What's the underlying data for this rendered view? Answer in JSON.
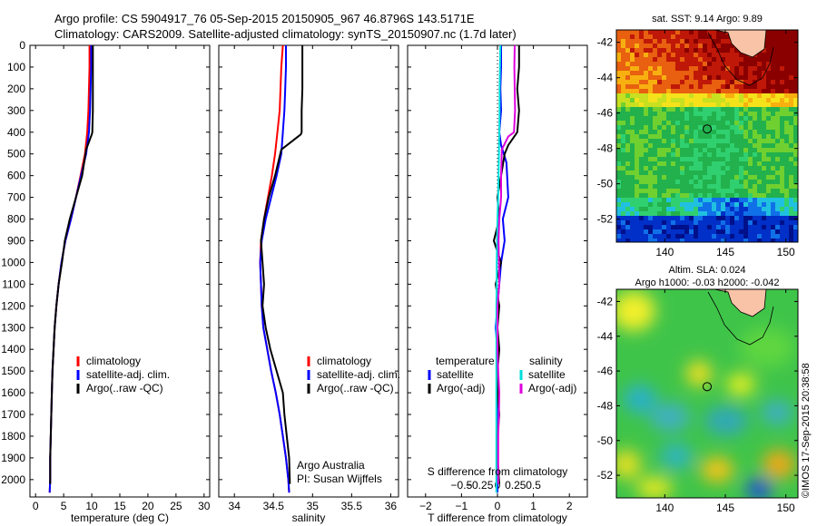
{
  "header": {
    "line1": "Argo profile: CS 5904917_76 05-Sep-2015 20150905_967 46.8796S 143.5171E",
    "line2": "Climatology: CARS2009. Satellite-adjusted climatology: synTS_20150907.nc (1.7d later)"
  },
  "chart_data": [
    {
      "id": "temperature",
      "type": "line",
      "xlabel": "temperature (deg C)",
      "xlim": [
        -1,
        31
      ],
      "xticks": [
        0,
        5,
        10,
        15,
        20,
        25,
        30
      ],
      "ylim": [
        0,
        2080
      ],
      "yticks": [
        0,
        100,
        200,
        300,
        400,
        500,
        600,
        700,
        800,
        900,
        1000,
        1100,
        1200,
        1300,
        1400,
        1500,
        1600,
        1700,
        1800,
        1900,
        2000
      ],
      "legend": [
        "climatology",
        "satellite-adj. clim.",
        "Argo(..raw -QC)"
      ],
      "series": [
        {
          "name": "climatology",
          "color": "#ff0000",
          "x": [
            9.6,
            9.6,
            9.5,
            9.4,
            9.2,
            8.8,
            8.0,
            7.2,
            6.3,
            5.3,
            4.6,
            4.1,
            3.7,
            3.4,
            3.2,
            3.0,
            2.9,
            2.8,
            2.7,
            2.6,
            2.6,
            2.5
          ],
          "y": [
            0,
            100,
            200,
            300,
            400,
            500,
            600,
            700,
            800,
            900,
            1000,
            1100,
            1200,
            1300,
            1400,
            1500,
            1600,
            1700,
            1800,
            1900,
            2000,
            2060
          ]
        },
        {
          "name": "satellite-adj. clim.",
          "color": "#0000ff",
          "x": [
            9.9,
            9.9,
            9.8,
            9.7,
            9.5,
            9.0,
            8.1,
            7.2,
            6.3,
            5.3,
            4.6,
            4.1,
            3.7,
            3.4,
            3.2,
            3.0,
            2.9,
            2.8,
            2.7,
            2.6,
            2.6,
            2.5
          ],
          "y": [
            0,
            100,
            200,
            300,
            400,
            500,
            600,
            700,
            800,
            900,
            1000,
            1100,
            1200,
            1300,
            1400,
            1500,
            1600,
            1700,
            1800,
            1900,
            2000,
            2060
          ]
        },
        {
          "name": "Argo(..raw -QC)",
          "color": "#000000",
          "x": [
            10.2,
            10.2,
            10.2,
            10.2,
            10.1,
            10.0,
            9.0,
            8.3,
            7.2,
            6.1,
            5.2,
            4.7,
            4.1,
            3.7,
            3.4,
            3.2,
            3.0,
            2.9,
            2.8,
            2.7,
            2.6,
            2.6
          ],
          "y": [
            0,
            100,
            200,
            300,
            400,
            410,
            480,
            600,
            700,
            800,
            900,
            1000,
            1100,
            1200,
            1300,
            1400,
            1500,
            1600,
            1700,
            1800,
            1900,
            2020
          ]
        }
      ]
    },
    {
      "id": "salinity",
      "type": "line",
      "xlabel": "salinity",
      "xlim": [
        33.8,
        36.1
      ],
      "xticks": [
        34,
        34.5,
        35,
        35.5,
        36
      ],
      "ylim": [
        0,
        2080
      ],
      "legend": [
        "climatology",
        "satellite-adj. clim.",
        "Argo(..raw -QC)"
      ],
      "annotation": [
        "Argo Australia",
        "PI: Susan Wijffels"
      ],
      "series": [
        {
          "name": "climatology",
          "color": "#ff0000",
          "x": [
            34.62,
            34.6,
            34.59,
            34.58,
            34.55,
            34.52,
            34.48,
            34.43,
            34.38,
            34.34,
            34.33,
            34.34,
            34.35,
            34.37,
            34.42,
            34.47,
            34.53,
            34.58,
            34.62,
            34.66,
            34.69,
            34.7
          ],
          "y": [
            0,
            100,
            200,
            300,
            400,
            500,
            600,
            700,
            800,
            900,
            1000,
            1100,
            1200,
            1300,
            1400,
            1500,
            1600,
            1700,
            1800,
            1900,
            2000,
            2060
          ]
        },
        {
          "name": "satellite-adj. clim.",
          "color": "#0000ff",
          "x": [
            34.66,
            34.66,
            34.65,
            34.64,
            34.62,
            34.6,
            34.54,
            34.47,
            34.4,
            34.35,
            34.33,
            34.34,
            34.35,
            34.37,
            34.42,
            34.47,
            34.53,
            34.58,
            34.62,
            34.66,
            34.69,
            34.7
          ],
          "y": [
            0,
            100,
            200,
            300,
            400,
            500,
            600,
            700,
            800,
            900,
            1000,
            1100,
            1200,
            1300,
            1400,
            1500,
            1600,
            1700,
            1800,
            1900,
            2000,
            2060
          ]
        },
        {
          "name": "Argo(..raw -QC)",
          "color": "#000000",
          "x": [
            34.87,
            34.87,
            34.87,
            34.86,
            34.86,
            34.85,
            34.6,
            34.52,
            34.44,
            34.38,
            34.34,
            34.36,
            34.38,
            34.36,
            34.4,
            34.46,
            34.54,
            34.62,
            34.64,
            34.67,
            34.7,
            34.71
          ],
          "y": [
            0,
            100,
            200,
            300,
            400,
            410,
            480,
            600,
            700,
            800,
            900,
            1000,
            1100,
            1200,
            1300,
            1400,
            1500,
            1600,
            1700,
            1800,
            1900,
            2020
          ]
        }
      ]
    },
    {
      "id": "difference",
      "type": "line",
      "xlabel": "T difference from climatology",
      "xlabel_top": "S difference from climatology",
      "xlim": [
        -2.5,
        2.5
      ],
      "xticks": [
        -2,
        -1,
        0,
        1,
        2
      ],
      "xticks_labels": [
        "−2",
        "−1",
        "0",
        "1",
        "2"
      ],
      "xticks_top": [
        -1,
        -0.5,
        0,
        0.5,
        1
      ],
      "xticks_top_labels": [
        "−0.5",
        "−0.25",
        "0",
        "0.25",
        "0.5"
      ],
      "ylim": [
        0,
        2080
      ],
      "legend_left_title": "temperature",
      "legend_right_title": "salinity",
      "legend_left": [
        "satellite",
        "Argo(-adj)"
      ],
      "legend_right": [
        "satellite",
        "Argo(-adj)"
      ],
      "series": [
        {
          "name": "T satellite",
          "color": "#0000ff",
          "x": [
            0.1,
            0.1,
            0.08,
            0.1,
            0.05,
            0.1,
            0.25,
            0.3,
            0.15,
            0.2,
            0.1,
            0.05,
            0.0,
            -0.05,
            0.0,
            0.0,
            0.0,
            0.0,
            0.0,
            0.0,
            0.0,
            0.0
          ],
          "y": [
            0,
            100,
            200,
            300,
            400,
            460,
            540,
            700,
            800,
            900,
            1000,
            1100,
            1200,
            1300,
            1400,
            1500,
            1600,
            1700,
            1800,
            1900,
            2000,
            2060
          ]
        },
        {
          "name": "T Argo(-adj)",
          "color": "#000000",
          "x": [
            0.6,
            0.6,
            0.55,
            0.6,
            0.55,
            0.3,
            0.2,
            0.1,
            0.0,
            0.05,
            -0.1,
            0.1,
            -0.05,
            0.05,
            0.0,
            0.05,
            0.0,
            0.0,
            0.05,
            0.0,
            0.0,
            0.05
          ],
          "y": [
            0,
            100,
            200,
            300,
            400,
            460,
            500,
            600,
            700,
            800,
            900,
            1000,
            1100,
            1200,
            1300,
            1400,
            1500,
            1600,
            1700,
            1800,
            1900,
            2020
          ]
        },
        {
          "name": "S satellite",
          "color": "#00dddd",
          "x": [
            0.08,
            0.07,
            0.06,
            0.06,
            0.05,
            0.04,
            0.03,
            0.02,
            0.0,
            -0.01,
            -0.02,
            -0.02,
            -0.03,
            -0.03,
            -0.03,
            -0.03,
            -0.03,
            -0.03,
            -0.03,
            -0.03,
            -0.03,
            -0.03
          ],
          "y": [
            0,
            100,
            200,
            300,
            400,
            500,
            600,
            700,
            800,
            900,
            1000,
            1100,
            1200,
            1300,
            1400,
            1500,
            1600,
            1700,
            1800,
            1900,
            2000,
            2060
          ]
        },
        {
          "name": "S Argo(-adj)",
          "color": "#dd00dd",
          "x": [
            0.48,
            0.47,
            0.48,
            0.49,
            0.46,
            0.3,
            0.12,
            0.1,
            0.1,
            0.05,
            0.03,
            0.04,
            0.05,
            0.0,
            0.0,
            0.0,
            0.02,
            0.05,
            0.04,
            0.02,
            0.02,
            0.02
          ],
          "y": [
            0,
            100,
            200,
            300,
            400,
            420,
            480,
            600,
            700,
            800,
            900,
            1000,
            1100,
            1200,
            1300,
            1400,
            1500,
            1600,
            1700,
            1800,
            1900,
            2020
          ]
        }
      ]
    },
    {
      "id": "sst_map",
      "type": "heatmap",
      "title": "sat. SST: 9.14  Argo: 9.89",
      "xlim": [
        136,
        151
      ],
      "ylim": [
        -53.3,
        -41.3
      ],
      "xticks": [
        140,
        145,
        150
      ],
      "yticks": [
        -42,
        -44,
        -46,
        -48,
        -50,
        -52
      ],
      "profile_location": [
        143.5,
        -46.9
      ]
    },
    {
      "id": "sla_map",
      "type": "heatmap",
      "title": "Altim. SLA: 0.024",
      "subtitle": "Argo h1000: -0.03 h2000: -0.042",
      "xlim": [
        136,
        151
      ],
      "ylim": [
        -53.3,
        -41.3
      ],
      "xticks": [
        140,
        145,
        150
      ],
      "yticks": [
        -42,
        -44,
        -46,
        -48,
        -50,
        -52
      ],
      "profile_location": [
        143.5,
        -46.9
      ]
    }
  ],
  "credit": "©IMOS 17-Sep-2015 20:38:58"
}
